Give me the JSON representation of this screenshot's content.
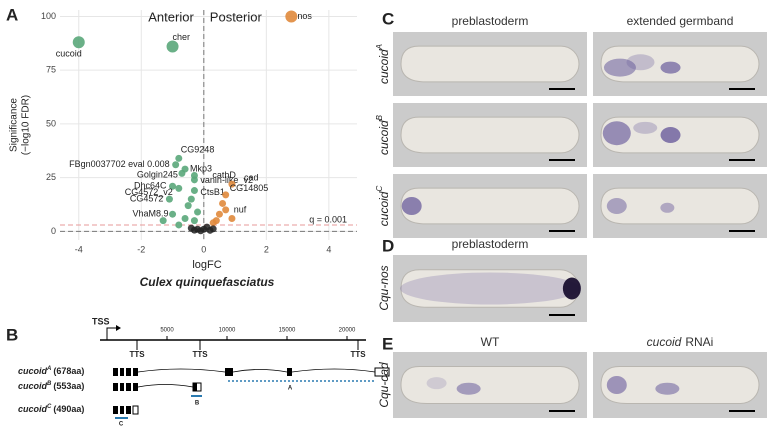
{
  "figure_labels": [
    "A",
    "B",
    "C",
    "D",
    "E"
  ],
  "chart_data": {
    "type": "scatter",
    "title": "Culex quinquefasciatus",
    "x_label": "logFC",
    "y_label": [
      "Significance",
      "(−log10 FDR)"
    ],
    "xlim": [
      -4.6,
      4.9
    ],
    "ylim": [
      -4,
      103
    ],
    "xticks": [
      -4,
      -2,
      0,
      2,
      4
    ],
    "yticks": [
      0,
      25,
      50,
      75,
      100
    ],
    "grid": true,
    "threshold": {
      "value": 3,
      "label": "q = 0.001"
    },
    "series": [
      {
        "name": "Anterior",
        "color": "#5aa77a",
        "x": [
          -4.0,
          -1.0,
          -0.8,
          -0.9,
          -0.6,
          -0.7,
          -0.3,
          -0.3,
          -1.0,
          -0.8,
          -0.3,
          -1.1,
          -1.0,
          -0.5,
          -0.6,
          -0.3,
          -0.2,
          -0.8,
          -0.4,
          -1.3
        ],
        "values": [
          88,
          86,
          34,
          31,
          29,
          27,
          26,
          24,
          21,
          20,
          19,
          15,
          8,
          12,
          6,
          5,
          9,
          3,
          15,
          5
        ],
        "point_labels": [
          "cucoid",
          "cher",
          "CG9248",
          "FBgn0037702 eval 0.008",
          "Mkp3",
          "Golgin245",
          "cathD",
          "vanin-like_v2",
          "Dhc64C",
          "CG4572_v2",
          "CtsB1",
          "CG4572",
          "VhaM8.9",
          null,
          null,
          null,
          null,
          null,
          null,
          null
        ]
      },
      {
        "name": "Posterior",
        "color": "#e08a3c",
        "x": [
          2.8,
          0.9,
          0.7,
          0.7,
          0.5,
          0.4,
          0.6,
          0.3,
          0.9
        ],
        "values": [
          100,
          22,
          17,
          10,
          8,
          5,
          13,
          4,
          6
        ],
        "point_labels": [
          "nos",
          "cad",
          "CG14805",
          "nuf",
          null,
          null,
          null,
          null,
          null
        ]
      },
      {
        "color": "#222222",
        "x": [
          -0.2,
          0.1,
          -0.4,
          0.2,
          0.0,
          -0.1,
          0.3,
          -0.3
        ],
        "values": [
          1,
          2,
          1.5,
          0.5,
          1,
          0.3,
          1.2,
          0.6
        ]
      }
    ]
  },
  "gene_model": {
    "tss": "TSS",
    "tts": [
      "TTS",
      "TTS",
      "TTS"
    ],
    "axis_ticks": [
      5000,
      10000,
      15000,
      20000
    ],
    "isoforms": [
      {
        "name": "cucoid",
        "sup": "A",
        "length": "(678aa)",
        "probe": "A"
      },
      {
        "name": "cucoid",
        "sup": "B",
        "length": "(553aa)",
        "probe": "B"
      },
      {
        "name": "cucoid",
        "sup": "C",
        "length": "(490aa)",
        "probe": "C"
      }
    ]
  },
  "panel_c": {
    "columns": [
      "preblastoderm",
      "extended germband"
    ],
    "rows": [
      {
        "gene": "cucoid",
        "isoform": "A"
      },
      {
        "gene": "cucoid",
        "isoform": "B"
      },
      {
        "gene": "cucoid",
        "isoform": "C"
      }
    ]
  },
  "panel_d": {
    "column": "preblastoderm",
    "row": "Cqu-nos"
  },
  "panel_e": {
    "columns": [
      "WT",
      {
        "gene": "cucoid",
        "text": "RNAi"
      }
    ],
    "row": "Cqu-cad"
  }
}
